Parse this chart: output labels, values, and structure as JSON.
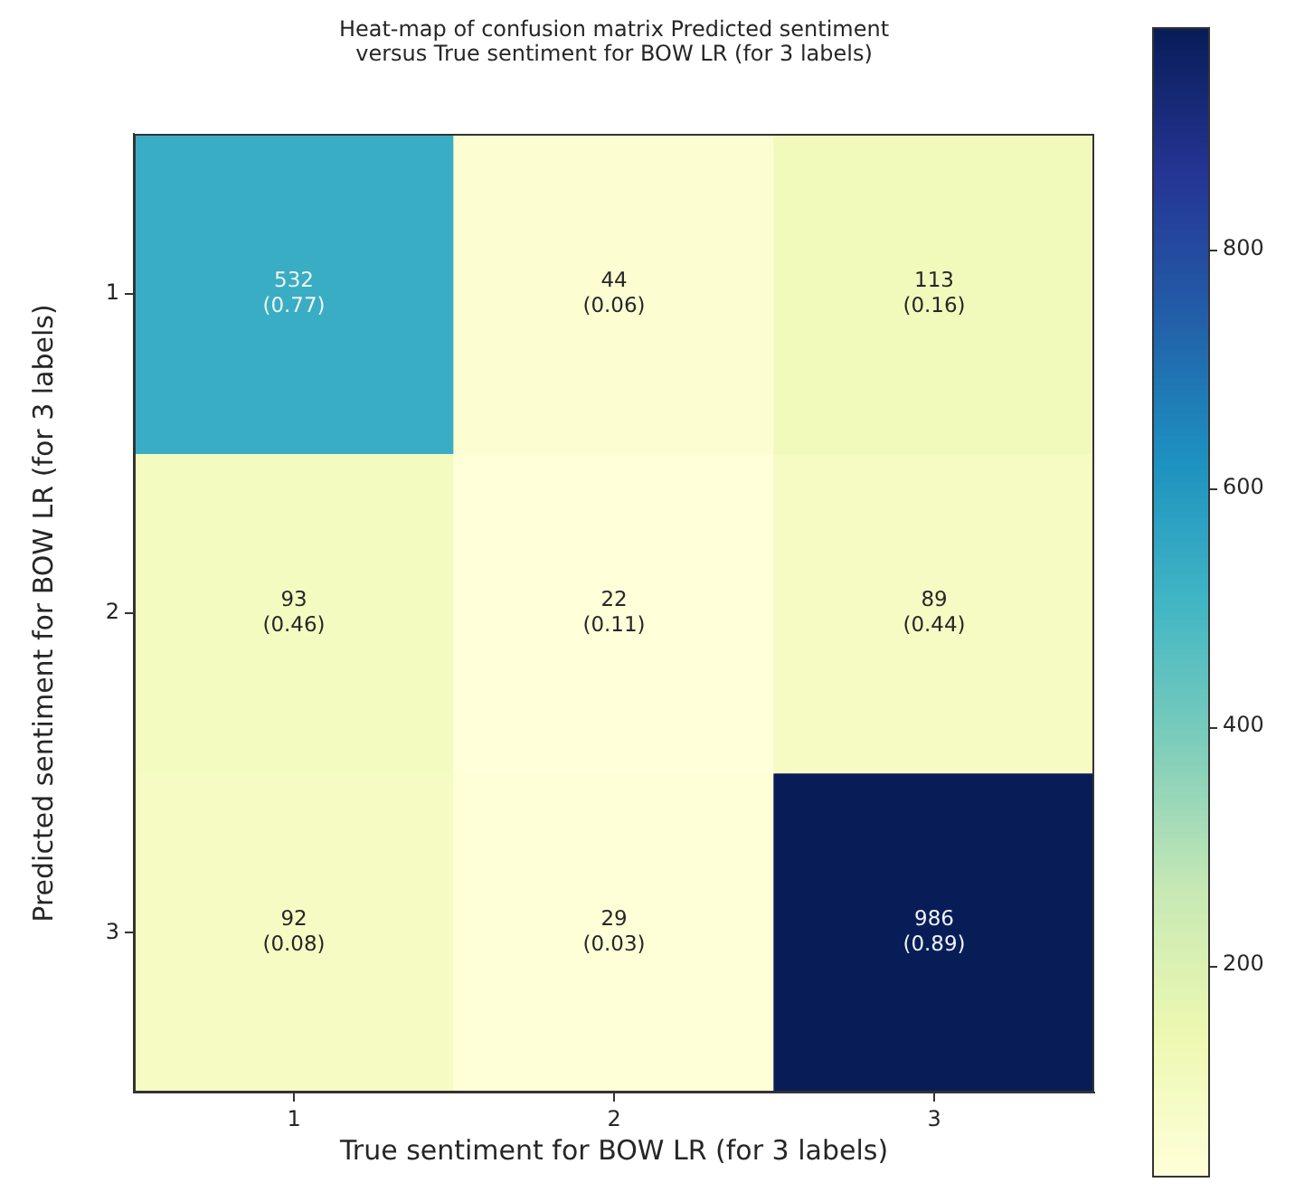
{
  "chart_data": {
    "type": "heatmap",
    "title": "Heat-map of confusion matrix Predicted sentiment\nversus True sentiment for BOW LR (for 3 labels)",
    "xlabel": "True sentiment for BOW LR (for 3 labels)",
    "ylabel": "Predicted sentiment for BOW LR (for 3 labels)",
    "categories": [
      "1",
      "2",
      "3"
    ],
    "y_categories": [
      "1",
      "2",
      "3"
    ],
    "cells": [
      [
        532,
        44,
        113
      ],
      [
        93,
        22,
        89
      ],
      [
        92,
        29,
        986
      ]
    ],
    "cell_labels": [
      [
        "532\n(0.77)",
        "44\n(0.06)",
        "113\n(0.16)"
      ],
      [
        "93\n(0.46)",
        "22\n(0.11)",
        "89\n(0.44)"
      ],
      [
        "92\n(0.08)",
        "29\n(0.03)",
        "986\n(0.89)"
      ]
    ],
    "clim": [
      22,
      986
    ],
    "cticks": [
      200,
      400,
      600,
      800
    ]
  }
}
